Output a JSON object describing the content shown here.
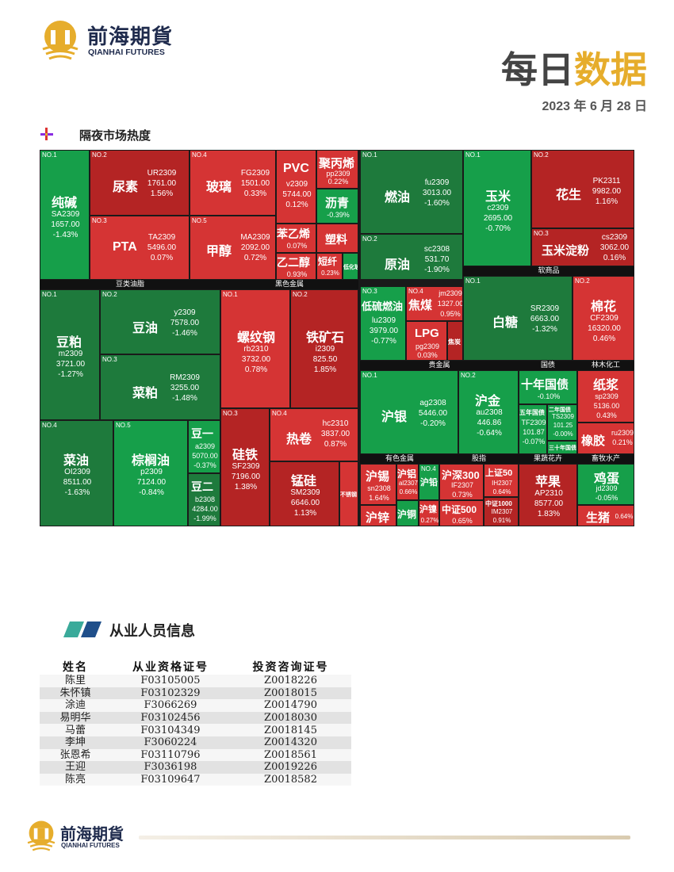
{
  "company": {
    "name_cn": "前海期貨",
    "name_en": "QIANHAI FUTURES"
  },
  "header": {
    "title_part1": "每日",
    "title_part2": "数据",
    "date": "2023 年 6 月 28 日"
  },
  "heatmap_section": {
    "title": "隔夜市场热度"
  },
  "colors": {
    "up": "#d53434",
    "down": "#169f4a",
    "accent": "#e6ad2c",
    "brand": "#1f2b4d"
  },
  "sectors": [
    {
      "name": "豆类油脂"
    },
    {
      "name": "黑色金属"
    },
    {
      "name": "软商品"
    },
    {
      "name": "贵金属"
    },
    {
      "name": "国债"
    },
    {
      "name": "林木化工"
    },
    {
      "name": "有色金属"
    },
    {
      "name": "股指"
    },
    {
      "name": "果蔬花卉"
    },
    {
      "name": "畜牧水产"
    }
  ],
  "cells": {
    "chunjian": {
      "no": "NO.1",
      "name": "纯碱",
      "code": "SA2309",
      "price": "1657.00",
      "change": "-1.43%"
    },
    "niaosu": {
      "no": "NO.2",
      "name": "尿素",
      "code": "UR2309",
      "price": "1761.00",
      "change": "1.56%"
    },
    "boli": {
      "no": "NO.4",
      "name": "玻璃",
      "code": "FG2309",
      "price": "1501.00",
      "change": "0.33%"
    },
    "pvc": {
      "name": "PVC",
      "code": "v2309",
      "price": "5744.00",
      "change": "0.12%"
    },
    "jubingxi": {
      "name": "聚丙烯",
      "code": "pp2309",
      "change": "0.22%"
    },
    "liqing": {
      "name": "沥青",
      "change": "-0.39%"
    },
    "pta": {
      "no": "NO.3",
      "name": "PTA",
      "code": "TA2309",
      "price": "5496.00",
      "change": "0.07%"
    },
    "jiachun": {
      "no": "NO.5",
      "name": "甲醇",
      "code": "MA2309",
      "price": "2092.00",
      "change": "0.72%"
    },
    "benyixi": {
      "name": "苯乙烯",
      "change": "0.07%"
    },
    "suliao": {
      "name": "塑料"
    },
    "yierchun": {
      "name": "乙二醇",
      "change": "0.93%"
    },
    "duanxian": {
      "name": "短纤",
      "change": "0.23%"
    },
    "dihua": {
      "name": "低化玻"
    },
    "ranyou": {
      "no": "NO.1",
      "name": "燃油",
      "code": "fu2309",
      "price": "3013.00",
      "change": "-1.60%"
    },
    "yuanyou": {
      "no": "NO.2",
      "name": "原油",
      "code": "sc2308",
      "price": "531.70",
      "change": "-1.90%"
    },
    "yumi": {
      "no": "NO.1",
      "name": "玉米",
      "code": "c2309",
      "price": "2695.00",
      "change": "-0.70%"
    },
    "huasheng": {
      "no": "NO.2",
      "name": "花生",
      "code": "PK2311",
      "price": "9982.00",
      "change": "1.16%"
    },
    "yumidianfen": {
      "no": "NO.3",
      "name": "玉米淀粉",
      "code": "cs2309",
      "price": "3062.00",
      "change": "0.16%"
    },
    "doupo": {
      "no": "NO.1",
      "name": "豆粕",
      "code": "m2309",
      "price": "3721.00",
      "change": "-1.27%"
    },
    "douyou": {
      "no": "NO.2",
      "name": "豆油",
      "code": "y2309",
      "price": "7578.00",
      "change": "-1.46%"
    },
    "caipo": {
      "no": "NO.3",
      "name": "菜粕",
      "code": "RM2309",
      "price": "3255.00",
      "change": "-1.48%"
    },
    "caiyou": {
      "no": "NO.4",
      "name": "菜油",
      "code": "OI2309",
      "price": "8511.00",
      "change": "-1.63%"
    },
    "zonglvyou": {
      "no": "NO.5",
      "name": "棕榈油",
      "code": "p2309",
      "price": "7124.00",
      "change": "-0.84%"
    },
    "douyi": {
      "name": "豆一",
      "code": "a2309",
      "price": "5070.00",
      "change": "-0.37%"
    },
    "douer": {
      "name": "豆二",
      "code": "b2308",
      "price": "4284.00",
      "change": "-1.99%"
    },
    "luowengang": {
      "no": "NO.1",
      "name": "螺纹钢",
      "code": "rb2310",
      "price": "3732.00",
      "change": "0.78%"
    },
    "tiekuangshi": {
      "no": "NO.2",
      "name": "铁矿石",
      "code": "i2309",
      "price": "825.50",
      "change": "1.85%"
    },
    "guitie": {
      "no": "NO.3",
      "name": "硅铁",
      "code": "SF2309",
      "price": "7196.00",
      "change": "1.38%"
    },
    "rejuan": {
      "no": "NO.4",
      "name": "热卷",
      "code": "hc2310",
      "price": "3837.00",
      "change": "0.87%"
    },
    "menggui": {
      "name": "锰硅",
      "code": "SM2309",
      "price": "6646.00",
      "change": "1.13%"
    },
    "buxiugang": {
      "name": "不锈钢"
    },
    "diliuranyou": {
      "no": "NO.3",
      "name": "低硫燃油",
      "code": "lu2309",
      "price": "3979.00",
      "change": "-0.77%"
    },
    "jiaomei": {
      "no": "NO.4",
      "name": "焦煤",
      "code": "jm2309",
      "price": "1327.00",
      "change": "0.95%"
    },
    "lpg": {
      "name": "LPG",
      "code": "pg2309",
      "change": "0.03%"
    },
    "jiaotan": {
      "name": "焦炭"
    },
    "baitang": {
      "no": "NO.1",
      "name": "白糖",
      "code": "SR2309",
      "price": "6663.00",
      "change": "-1.32%"
    },
    "mianhua": {
      "no": "NO.2",
      "name": "棉花",
      "code": "CF2309",
      "price": "16320.00",
      "change": "0.46%"
    },
    "huyin": {
      "no": "NO.1",
      "name": "沪银",
      "code": "ag2308",
      "price": "5446.00",
      "change": "-0.20%"
    },
    "hujin": {
      "no": "NO.2",
      "name": "沪金",
      "code": "au2308",
      "price": "446.86",
      "change": "-0.64%"
    },
    "shinian": {
      "name": "十年国债",
      "change": "-0.10%"
    },
    "wunian": {
      "name": "五年国债",
      "code": "TF2309",
      "price": "101.87",
      "change": "-0.07%"
    },
    "ernian": {
      "name": "二年国债",
      "code": "TS2309",
      "price": "101.25",
      "change": "-0.00%"
    },
    "sanshinian": {
      "name": "三十年国债"
    },
    "zhijiang": {
      "name": "纸浆",
      "code": "sp2309",
      "price": "5136.00",
      "change": "0.43%"
    },
    "xiangjiao": {
      "name": "橡胶",
      "code": "ru2309",
      "change": "0.21%"
    },
    "huxi": {
      "name": "沪锡",
      "code": "sn2308",
      "change": "1.64%"
    },
    "hulv": {
      "name": "沪铝",
      "code": "al2307",
      "change": "0.66%"
    },
    "huqian": {
      "no": "NO.4",
      "name": "沪铅"
    },
    "huxin": {
      "name": "沪锌"
    },
    "hutong": {
      "name": "沪铜"
    },
    "hunie": {
      "name": "沪镍",
      "change": "0.27%"
    },
    "hushen300": {
      "name": "沪深300",
      "code": "IF2307",
      "change": "0.73%"
    },
    "shangzheng50": {
      "name": "上证50",
      "code": "IH2307",
      "change": "0.64%"
    },
    "zhongzheng500": {
      "name": "中证500",
      "change": "0.65%"
    },
    "zhongzheng1000": {
      "name": "中证1000",
      "code": "IM2307",
      "change": "0.91%"
    },
    "pingguo": {
      "name": "苹果",
      "code": "AP2310",
      "price": "8577.00",
      "change": "1.83%"
    },
    "jidan": {
      "name": "鸡蛋",
      "code": "jd2309",
      "change": "-0.05%"
    },
    "shengzhu": {
      "name": "生猪",
      "change": "0.64%"
    }
  },
  "staff_section": {
    "title": "从业人员信息",
    "headers": [
      "姓名",
      "从业资格证号",
      "投资咨询证号"
    ],
    "rows": [
      [
        "陈里",
        "F03105005",
        "Z0018226"
      ],
      [
        "朱怀镇",
        "F03102329",
        "Z0018015"
      ],
      [
        "涂迪",
        "F3066269",
        "Z0014790"
      ],
      [
        "易明华",
        "F03102456",
        "Z0018030"
      ],
      [
        "马蕾",
        "F03104349",
        "Z0018145"
      ],
      [
        "李坤",
        "F3060224",
        "Z0014320"
      ],
      [
        "张恩希",
        "F03110796",
        "Z0018561"
      ],
      [
        "王迎",
        "F3036198",
        "Z0019226"
      ],
      [
        "陈亮",
        "F03109647",
        "Z0018582"
      ]
    ]
  }
}
